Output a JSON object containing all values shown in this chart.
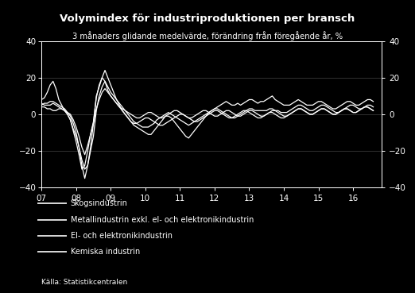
{
  "title": "Volymindex för industriproduktionen per bransch",
  "subtitle": "3 månaders glidande medelvärde, förändring från föregående år, %",
  "source": "Källa: Statistikcentralen",
  "background_color": "#000000",
  "text_color": "#ffffff",
  "line_color": "#ffffff",
  "ylim": [
    -40,
    40
  ],
  "yticks": [
    -40,
    -20,
    0,
    20,
    40
  ],
  "xlabel_ticks": [
    "07",
    "08",
    "09",
    "10",
    "11",
    "12",
    "13",
    "14",
    "15",
    "16"
  ],
  "legend_labels": [
    "Skogsindustrin",
    "Metallindustrin exkl. el- och elektronikindustrin",
    "El- och elektronikindustrin",
    "Kemiska industrin"
  ],
  "skogsindustrin": [
    8,
    9,
    12,
    16,
    18,
    14,
    8,
    5,
    2,
    0,
    -3,
    -8,
    -12,
    -18,
    -28,
    -35,
    -28,
    -18,
    -5,
    10,
    15,
    20,
    24,
    20,
    16,
    12,
    8,
    5,
    2,
    0,
    -2,
    -4,
    -6,
    -7,
    -8,
    -9,
    -10,
    -11,
    -11,
    -9,
    -7,
    -5,
    -3,
    -1,
    -1,
    -2,
    -4,
    -6,
    -8,
    -10,
    -12,
    -13,
    -11,
    -9,
    -7,
    -5,
    -3,
    -1,
    1,
    2,
    3,
    4,
    5,
    6,
    7,
    6,
    5,
    5,
    6,
    5,
    6,
    7,
    8,
    8,
    7,
    6,
    7,
    7,
    8,
    9,
    10,
    8,
    7,
    6,
    5,
    5,
    5,
    6,
    7,
    8,
    7,
    6,
    5,
    5,
    5,
    6,
    7,
    7,
    6,
    5,
    4,
    3,
    3,
    4,
    5,
    6,
    7,
    7,
    6,
    5,
    5,
    6,
    7,
    8,
    8,
    7
  ],
  "metallindustrin": [
    5,
    6,
    6,
    7,
    7,
    6,
    5,
    4,
    3,
    1,
    -1,
    -5,
    -10,
    -18,
    -25,
    -30,
    -28,
    -20,
    -12,
    2,
    10,
    15,
    18,
    15,
    12,
    10,
    8,
    6,
    4,
    2,
    0,
    -2,
    -4,
    -5,
    -6,
    -7,
    -7,
    -7,
    -6,
    -5,
    -3,
    -2,
    -1,
    0,
    1,
    0,
    -1,
    -2,
    -3,
    -4,
    -5,
    -6,
    -5,
    -4,
    -3,
    -2,
    -1,
    0,
    1,
    2,
    3,
    3,
    2,
    1,
    0,
    -1,
    -2,
    -2,
    -1,
    0,
    1,
    2,
    3,
    3,
    2,
    2,
    2,
    2,
    2,
    3,
    3,
    2,
    2,
    1,
    1,
    1,
    2,
    3,
    4,
    5,
    5,
    4,
    3,
    2,
    2,
    3,
    4,
    5,
    5,
    4,
    3,
    2,
    1,
    1,
    2,
    3,
    4,
    5,
    5,
    4,
    3,
    3,
    4,
    5,
    5,
    4
  ],
  "elektronikindustrin": [
    4,
    4,
    3,
    3,
    2,
    2,
    3,
    3,
    2,
    0,
    -3,
    -9,
    -15,
    -22,
    -30,
    -28,
    -20,
    -11,
    -4,
    9,
    16,
    20,
    18,
    13,
    10,
    8,
    6,
    4,
    2,
    0,
    -2,
    -4,
    -5,
    -5,
    -4,
    -3,
    -2,
    -2,
    -3,
    -4,
    -5,
    -6,
    -6,
    -5,
    -4,
    -3,
    -2,
    -1,
    0,
    0,
    -1,
    -2,
    -3,
    -4,
    -4,
    -3,
    -2,
    -1,
    0,
    1,
    2,
    2,
    1,
    0,
    -1,
    -2,
    -2,
    -1,
    0,
    1,
    2,
    2,
    1,
    0,
    -1,
    -2,
    -2,
    -1,
    0,
    1,
    1,
    0,
    -1,
    -2,
    -2,
    -1,
    0,
    1,
    2,
    3,
    3,
    2,
    1,
    0,
    0,
    1,
    2,
    3,
    3,
    2,
    1,
    0,
    0,
    1,
    2,
    3,
    3,
    2,
    1,
    1,
    2,
    3,
    4,
    4,
    3,
    2
  ],
  "kemiska_industrin": [
    6,
    5,
    5,
    5,
    6,
    5,
    4,
    3,
    2,
    1,
    0,
    -3,
    -7,
    -12,
    -18,
    -22,
    -17,
    -11,
    -5,
    3,
    8,
    12,
    14,
    12,
    10,
    8,
    6,
    4,
    3,
    2,
    1,
    0,
    -1,
    -2,
    -2,
    -1,
    0,
    1,
    1,
    0,
    -1,
    -2,
    -2,
    -1,
    0,
    1,
    2,
    2,
    1,
    0,
    -1,
    -2,
    -2,
    -1,
    0,
    1,
    2,
    2,
    1,
    0,
    -1,
    -1,
    0,
    1,
    2,
    2,
    1,
    0,
    -1,
    -1,
    0,
    1,
    2,
    2,
    1,
    0,
    -1,
    -1,
    0,
    1,
    2,
    2,
    1,
    0,
    -1,
    -1,
    0,
    1,
    2,
    3,
    3,
    2,
    1,
    0,
    0,
    1,
    2,
    3,
    3,
    2,
    1,
    0,
    0,
    1,
    2,
    3,
    3,
    2,
    1,
    1,
    2,
    3,
    4,
    4,
    3,
    2
  ]
}
